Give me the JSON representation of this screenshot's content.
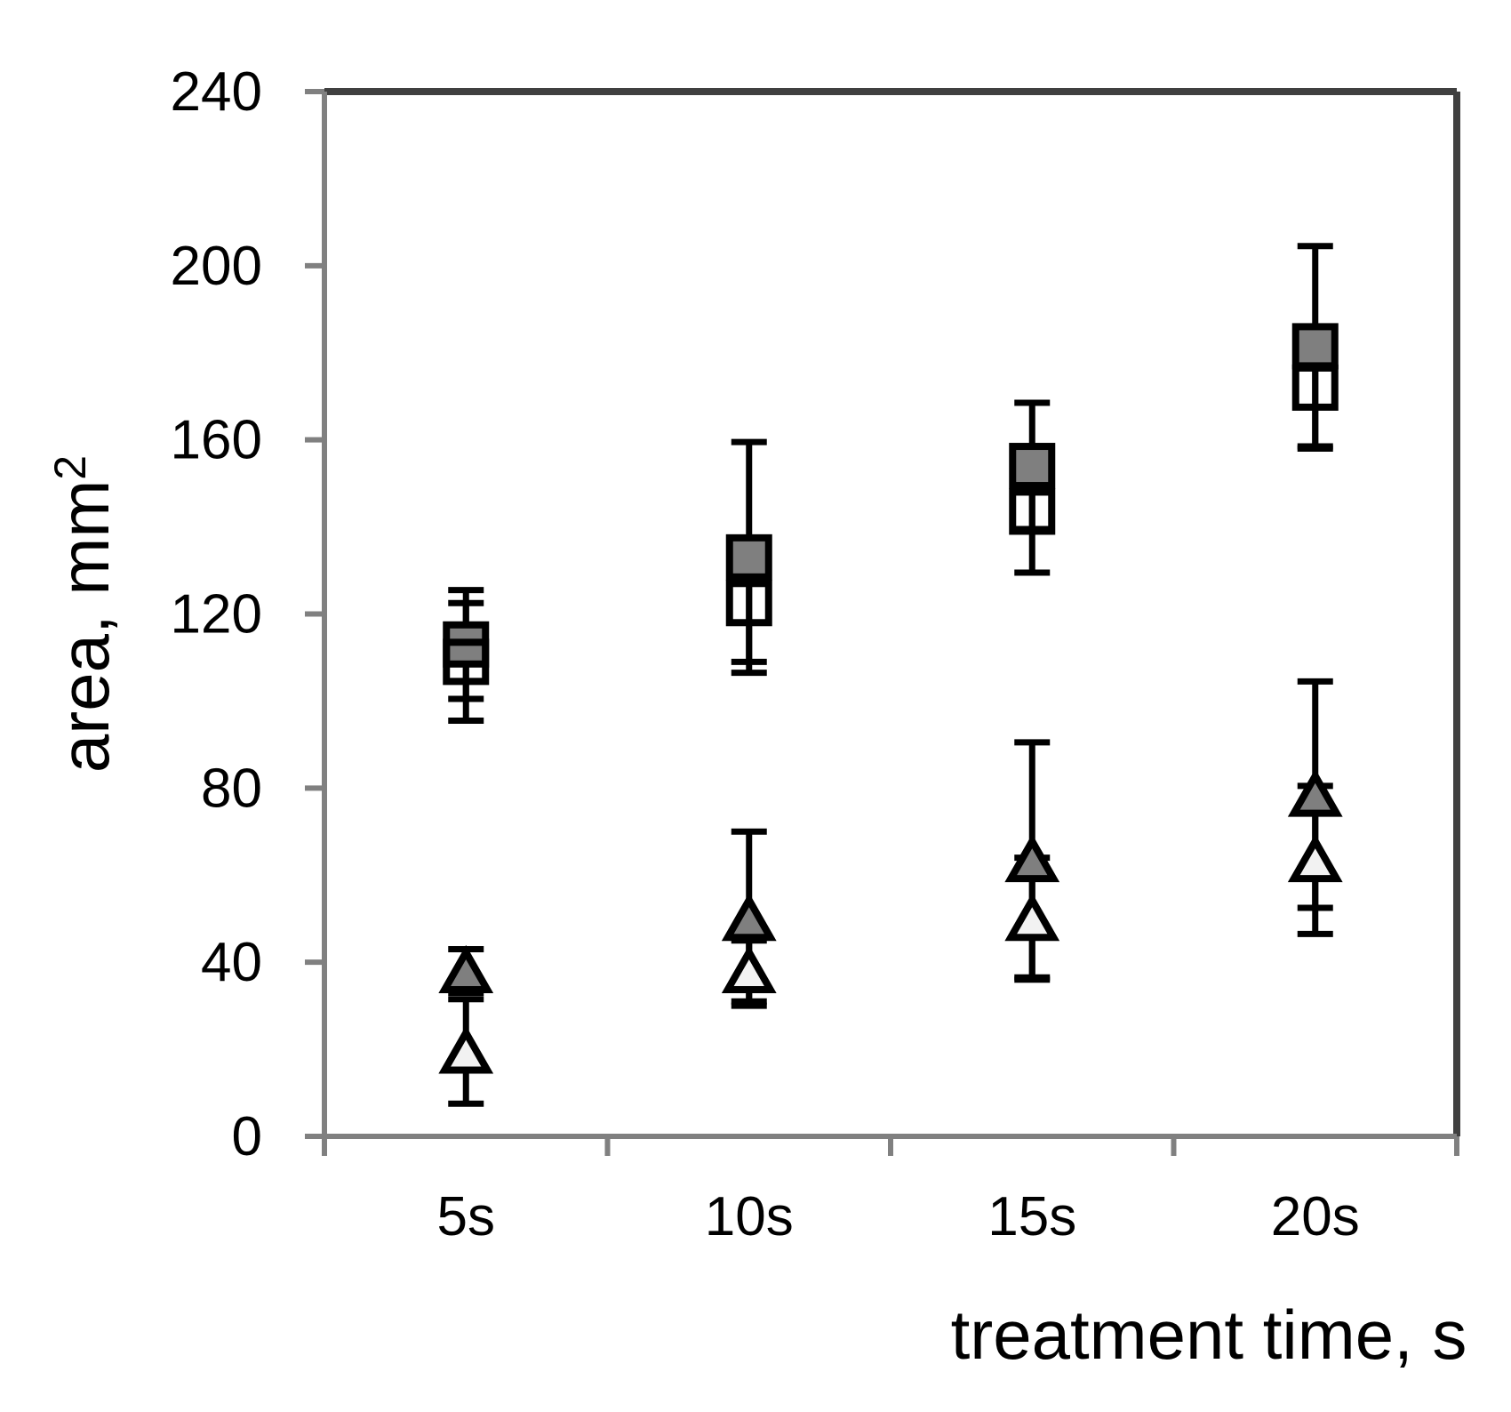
{
  "chart_data": {
    "type": "scatter",
    "title": "",
    "xlabel": "treatment time, s",
    "ylabel": "area, mm²",
    "ylabel_parts": {
      "base": "area, mm",
      "superscript": "2"
    },
    "categories": [
      "5s",
      "10s",
      "15s",
      "20s"
    ],
    "ylim": [
      0,
      240
    ],
    "yticks": [
      0,
      40,
      80,
      120,
      160,
      200,
      240
    ],
    "grid": false,
    "legend": false,
    "error_bars": true,
    "series": [
      {
        "name": "filled-squares",
        "marker": "square",
        "fill": "#7f7f7f",
        "outline": "#000000",
        "values": [
          113,
          133,
          154,
          181.5
        ],
        "errors": [
          12.5,
          26.5,
          14.5,
          23
        ]
      },
      {
        "name": "open-squares",
        "marker": "square",
        "fill": "none",
        "outline": "#000000",
        "values": [
          109,
          122.5,
          143.5,
          172
        ],
        "errors": [
          13.5,
          13.5,
          14,
          14
        ]
      },
      {
        "name": "filled-triangles",
        "marker": "triangle-up",
        "fill": "#7f7f7f",
        "outline": "#000000",
        "values": [
          38,
          50,
          63.5,
          78.5
        ],
        "errors": [
          5,
          20,
          27,
          26
        ]
      },
      {
        "name": "open-triangles",
        "marker": "triangle-up",
        "fill": "#f2f2f2",
        "outline": "#000000",
        "values": [
          19.5,
          38,
          50,
          63.5
        ],
        "errors": [
          12,
          7,
          14,
          17
        ]
      }
    ]
  },
  "style": {
    "background": "#ffffff",
    "box_border_color": "#404040",
    "axis_line_color": "#808080",
    "tick_color": "#808080",
    "text_color": "#000000",
    "error_bar_color": "#000000"
  }
}
